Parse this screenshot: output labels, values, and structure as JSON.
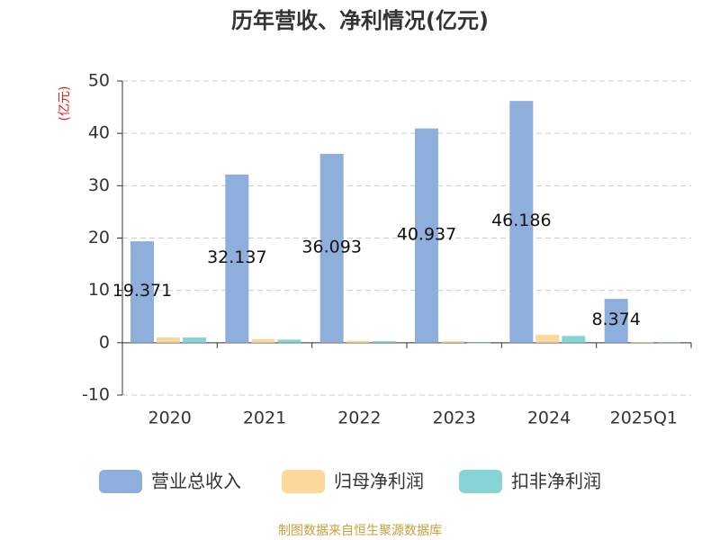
{
  "chart_data": {
    "type": "bar",
    "title": "历年营收、净利情况(亿元)",
    "y_label": "(亿元)",
    "categories": [
      "2020",
      "2021",
      "2022",
      "2023",
      "2024",
      "2025Q1"
    ],
    "series": [
      {
        "name": "营业总收入",
        "color": "#8eaedb",
        "values": [
          19.371,
          32.137,
          36.093,
          40.937,
          46.186,
          8.374
        ]
      },
      {
        "name": "归母净利润",
        "color": "#fdd89a",
        "values": [
          1.0,
          0.7,
          0.4,
          0.3,
          1.5,
          0.1
        ]
      },
      {
        "name": "扣非净利润",
        "color": "#86d4d6",
        "values": [
          1.0,
          0.6,
          0.3,
          -0.1,
          1.3,
          0.1
        ]
      }
    ],
    "ylim": [
      -10,
      50
    ],
    "yticks": [
      -10,
      0,
      10,
      20,
      30,
      40,
      50
    ],
    "grid": true,
    "source": "制图数据来自恒生聚源数据库"
  }
}
